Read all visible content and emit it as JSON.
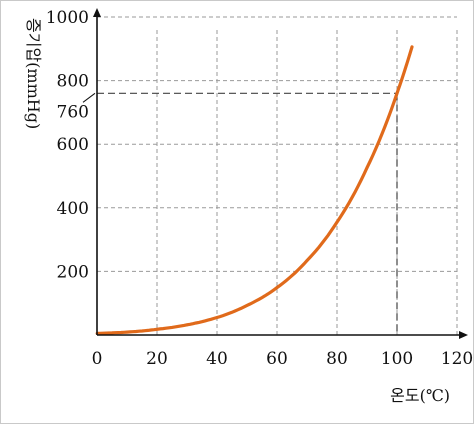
{
  "chart_data": {
    "type": "line",
    "title": "",
    "xlabel": "온도(℃)",
    "ylabel": "증기압(mmHg)",
    "xlim": [
      0,
      120
    ],
    "ylim": [
      0,
      1000
    ],
    "x_ticks": [
      0,
      20,
      40,
      60,
      80,
      100,
      120
    ],
    "y_ticks": [
      200,
      400,
      600,
      800,
      1000
    ],
    "y_extra_tick": 760,
    "grid": true,
    "series": [
      {
        "color": "#e06a1b",
        "x": [
          0,
          10,
          20,
          30,
          40,
          50,
          60,
          70,
          80,
          90,
          100,
          105
        ],
        "y": [
          5,
          9,
          18,
          32,
          55,
          93,
          149,
          234,
          355,
          526,
          760,
          906
        ]
      }
    ],
    "reference_lines": [
      {
        "x": 100,
        "y": 760
      }
    ]
  }
}
